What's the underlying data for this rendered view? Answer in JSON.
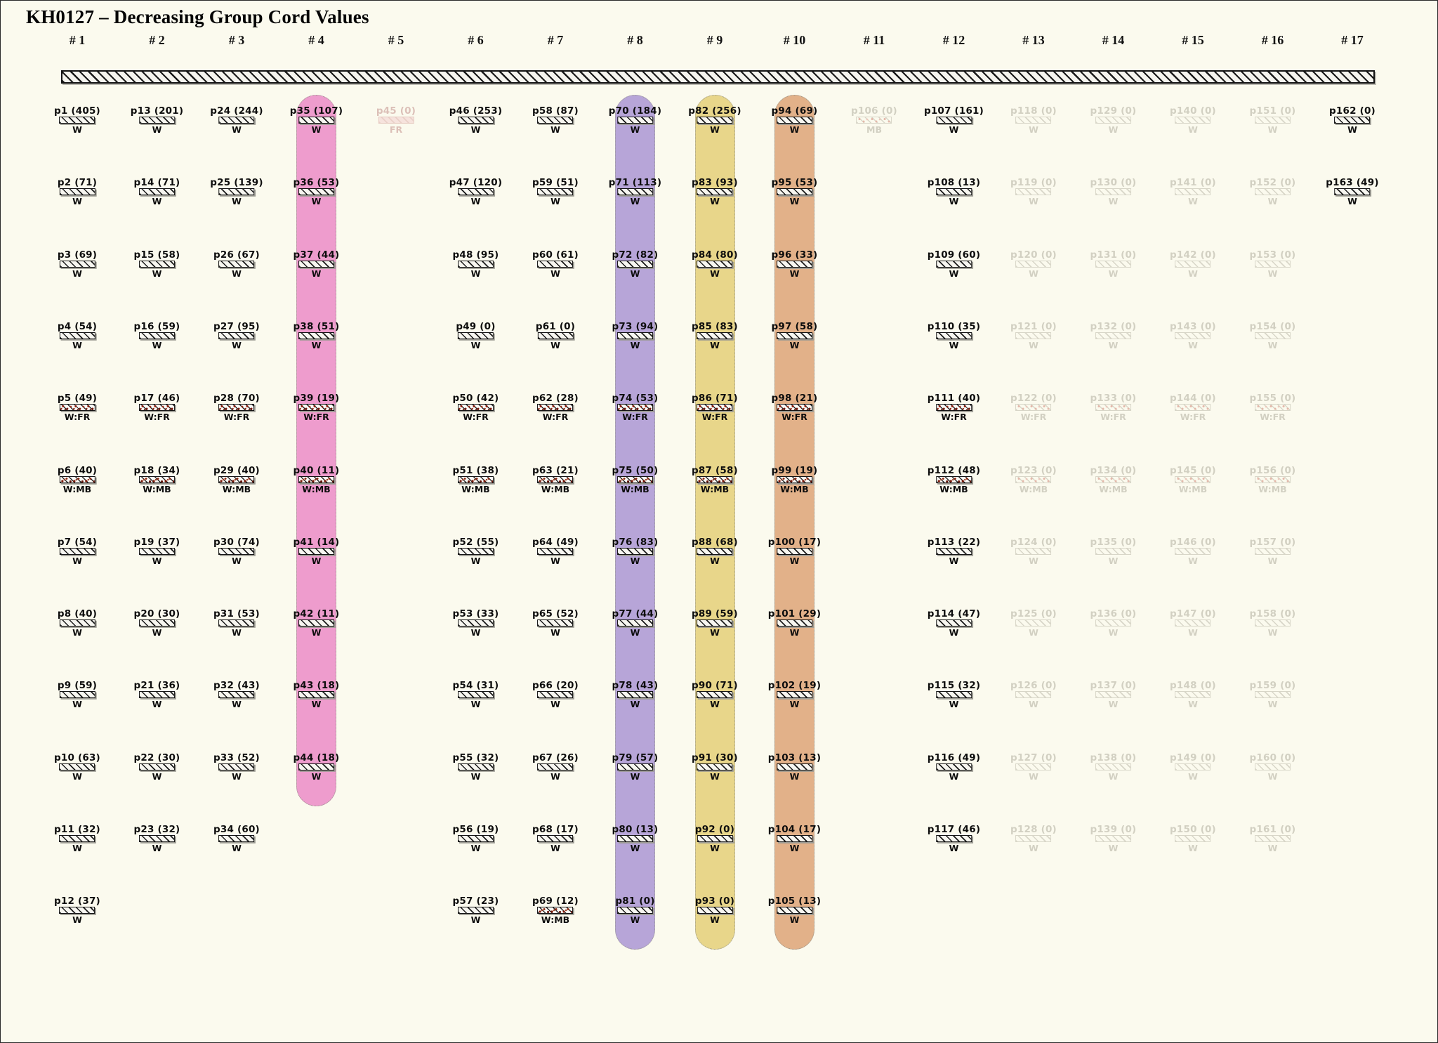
{
  "title": "KH0127 – Decreasing Group Cord Values",
  "colors": {
    "background": "#fbfaee",
    "pill_pink": "#ee9ccd",
    "pill_purple": "#b7a5d8",
    "pill_yellow": "#e8d68a",
    "pill_orange": "#e2b189",
    "bar_ink": "#131313",
    "faded_gray": "#d2d0c2",
    "faded_pink": "#dcc0b8"
  },
  "columns": [
    {
      "header": "# 1",
      "items": [
        {
          "label": "p1 (405)",
          "tag": "W"
        },
        {
          "label": "p2 (71)",
          "tag": "W"
        },
        {
          "label": "p3 (69)",
          "tag": "W"
        },
        {
          "label": "p4 (54)",
          "tag": "W"
        },
        {
          "label": "p5 (49)",
          "tag": "W:FR"
        },
        {
          "label": "p6 (40)",
          "tag": "W:MB"
        },
        {
          "label": "p7 (54)",
          "tag": "W"
        },
        {
          "label": "p8 (40)",
          "tag": "W"
        },
        {
          "label": "p9 (59)",
          "tag": "W"
        },
        {
          "label": "p10 (63)",
          "tag": "W"
        },
        {
          "label": "p11 (32)",
          "tag": "W"
        },
        {
          "label": "p12 (37)",
          "tag": "W"
        }
      ]
    },
    {
      "header": "# 2",
      "items": [
        {
          "label": "p13 (201)",
          "tag": "W"
        },
        {
          "label": "p14 (71)",
          "tag": "W"
        },
        {
          "label": "p15 (58)",
          "tag": "W"
        },
        {
          "label": "p16 (59)",
          "tag": "W"
        },
        {
          "label": "p17 (46)",
          "tag": "W:FR"
        },
        {
          "label": "p18 (34)",
          "tag": "W:MB"
        },
        {
          "label": "p19 (37)",
          "tag": "W"
        },
        {
          "label": "p20 (30)",
          "tag": "W"
        },
        {
          "label": "p21 (36)",
          "tag": "W"
        },
        {
          "label": "p22 (30)",
          "tag": "W"
        },
        {
          "label": "p23 (32)",
          "tag": "W"
        }
      ]
    },
    {
      "header": "# 3",
      "items": [
        {
          "label": "p24 (244)",
          "tag": "W"
        },
        {
          "label": "p25 (139)",
          "tag": "W"
        },
        {
          "label": "p26 (67)",
          "tag": "W"
        },
        {
          "label": "p27 (95)",
          "tag": "W"
        },
        {
          "label": "p28 (70)",
          "tag": "W:FR"
        },
        {
          "label": "p29 (40)",
          "tag": "W:MB"
        },
        {
          "label": "p30 (74)",
          "tag": "W"
        },
        {
          "label": "p31 (53)",
          "tag": "W"
        },
        {
          "label": "p32 (43)",
          "tag": "W"
        },
        {
          "label": "p33 (52)",
          "tag": "W"
        },
        {
          "label": "p34 (60)",
          "tag": "W"
        }
      ]
    },
    {
      "header": "# 4",
      "highlight": "#ee9ccd",
      "items": [
        {
          "label": "p35 (107)",
          "tag": "W"
        },
        {
          "label": "p36 (53)",
          "tag": "W"
        },
        {
          "label": "p37 (44)",
          "tag": "W"
        },
        {
          "label": "p38 (51)",
          "tag": "W"
        },
        {
          "label": "p39 (19)",
          "tag": "W:FR"
        },
        {
          "label": "p40 (11)",
          "tag": "W:MB"
        },
        {
          "label": "p41 (14)",
          "tag": "W"
        },
        {
          "label": "p42 (11)",
          "tag": "W"
        },
        {
          "label": "p43 (18)",
          "tag": "W"
        },
        {
          "label": "p44 (18)",
          "tag": "W"
        }
      ]
    },
    {
      "header": "# 5",
      "fade": "pink",
      "items": [
        {
          "label": "p45 (0)",
          "tag": "FR"
        }
      ]
    },
    {
      "header": "# 6",
      "items": [
        {
          "label": "p46 (253)",
          "tag": "W"
        },
        {
          "label": "p47 (120)",
          "tag": "W"
        },
        {
          "label": "p48 (95)",
          "tag": "W"
        },
        {
          "label": "p49 (0)",
          "tag": "W"
        },
        {
          "label": "p50 (42)",
          "tag": "W:FR"
        },
        {
          "label": "p51 (38)",
          "tag": "W:MB"
        },
        {
          "label": "p52 (55)",
          "tag": "W"
        },
        {
          "label": "p53 (33)",
          "tag": "W"
        },
        {
          "label": "p54 (31)",
          "tag": "W"
        },
        {
          "label": "p55 (32)",
          "tag": "W"
        },
        {
          "label": "p56 (19)",
          "tag": "W"
        },
        {
          "label": "p57 (23)",
          "tag": "W"
        }
      ]
    },
    {
      "header": "# 7",
      "items": [
        {
          "label": "p58 (87)",
          "tag": "W"
        },
        {
          "label": "p59 (51)",
          "tag": "W"
        },
        {
          "label": "p60 (61)",
          "tag": "W"
        },
        {
          "label": "p61 (0)",
          "tag": "W"
        },
        {
          "label": "p62 (28)",
          "tag": "W:FR"
        },
        {
          "label": "p63 (21)",
          "tag": "W:MB"
        },
        {
          "label": "p64 (49)",
          "tag": "W"
        },
        {
          "label": "p65 (52)",
          "tag": "W"
        },
        {
          "label": "p66 (20)",
          "tag": "W"
        },
        {
          "label": "p67 (26)",
          "tag": "W"
        },
        {
          "label": "p68 (17)",
          "tag": "W"
        },
        {
          "label": "p69 (12)",
          "tag": "W:MB"
        }
      ]
    },
    {
      "header": "# 8",
      "highlight": "#b7a5d8",
      "items": [
        {
          "label": "p70 (184)",
          "tag": "W"
        },
        {
          "label": "p71 (113)",
          "tag": "W"
        },
        {
          "label": "p72 (82)",
          "tag": "W"
        },
        {
          "label": "p73 (94)",
          "tag": "W"
        },
        {
          "label": "p74 (53)",
          "tag": "W:FR"
        },
        {
          "label": "p75 (50)",
          "tag": "W:MB"
        },
        {
          "label": "p76 (83)",
          "tag": "W"
        },
        {
          "label": "p77 (44)",
          "tag": "W"
        },
        {
          "label": "p78 (43)",
          "tag": "W"
        },
        {
          "label": "p79 (57)",
          "tag": "W"
        },
        {
          "label": "p80 (13)",
          "tag": "W"
        },
        {
          "label": "p81 (0)",
          "tag": "W"
        }
      ]
    },
    {
      "header": "# 9",
      "highlight": "#e8d68a",
      "items": [
        {
          "label": "p82 (256)",
          "tag": "W"
        },
        {
          "label": "p83 (93)",
          "tag": "W"
        },
        {
          "label": "p84 (80)",
          "tag": "W"
        },
        {
          "label": "p85 (83)",
          "tag": "W"
        },
        {
          "label": "p86 (71)",
          "tag": "W:FR"
        },
        {
          "label": "p87 (58)",
          "tag": "W:MB"
        },
        {
          "label": "p88 (68)",
          "tag": "W"
        },
        {
          "label": "p89 (59)",
          "tag": "W"
        },
        {
          "label": "p90 (71)",
          "tag": "W"
        },
        {
          "label": "p91 (30)",
          "tag": "W"
        },
        {
          "label": "p92 (0)",
          "tag": "W"
        },
        {
          "label": "p93 (0)",
          "tag": "W"
        }
      ]
    },
    {
      "header": "# 10",
      "highlight": "#e2b189",
      "items": [
        {
          "label": "p94 (69)",
          "tag": "W"
        },
        {
          "label": "p95 (53)",
          "tag": "W"
        },
        {
          "label": "p96 (33)",
          "tag": "W"
        },
        {
          "label": "p97 (58)",
          "tag": "W"
        },
        {
          "label": "p98 (21)",
          "tag": "W:FR"
        },
        {
          "label": "p99 (19)",
          "tag": "W:MB"
        },
        {
          "label": "p100 (17)",
          "tag": "W"
        },
        {
          "label": "p101 (29)",
          "tag": "W"
        },
        {
          "label": "p102 (19)",
          "tag": "W"
        },
        {
          "label": "p103 (13)",
          "tag": "W"
        },
        {
          "label": "p104 (17)",
          "tag": "W"
        },
        {
          "label": "p105 (13)",
          "tag": "W"
        }
      ]
    },
    {
      "header": "# 11",
      "fade": "gray",
      "items": [
        {
          "label": "p106 (0)",
          "tag": "MB"
        }
      ]
    },
    {
      "header": "# 12",
      "items": [
        {
          "label": "p107 (161)",
          "tag": "W"
        },
        {
          "label": "p108 (13)",
          "tag": "W"
        },
        {
          "label": "p109 (60)",
          "tag": "W"
        },
        {
          "label": "p110 (35)",
          "tag": "W"
        },
        {
          "label": "p111 (40)",
          "tag": "W:FR"
        },
        {
          "label": "p112 (48)",
          "tag": "W:MB"
        },
        {
          "label": "p113 (22)",
          "tag": "W"
        },
        {
          "label": "p114 (47)",
          "tag": "W"
        },
        {
          "label": "p115 (32)",
          "tag": "W"
        },
        {
          "label": "p116 (49)",
          "tag": "W"
        },
        {
          "label": "p117 (46)",
          "tag": "W"
        }
      ]
    },
    {
      "header": "# 13",
      "fade": "gray",
      "items": [
        {
          "label": "p118 (0)",
          "tag": "W"
        },
        {
          "label": "p119 (0)",
          "tag": "W"
        },
        {
          "label": "p120 (0)",
          "tag": "W"
        },
        {
          "label": "p121 (0)",
          "tag": "W"
        },
        {
          "label": "p122 (0)",
          "tag": "W:FR"
        },
        {
          "label": "p123 (0)",
          "tag": "W:MB"
        },
        {
          "label": "p124 (0)",
          "tag": "W"
        },
        {
          "label": "p125 (0)",
          "tag": "W"
        },
        {
          "label": "p126 (0)",
          "tag": "W"
        },
        {
          "label": "p127 (0)",
          "tag": "W"
        },
        {
          "label": "p128 (0)",
          "tag": "W"
        }
      ]
    },
    {
      "header": "# 14",
      "fade": "gray",
      "items": [
        {
          "label": "p129 (0)",
          "tag": "W"
        },
        {
          "label": "p130 (0)",
          "tag": "W"
        },
        {
          "label": "p131 (0)",
          "tag": "W"
        },
        {
          "label": "p132 (0)",
          "tag": "W"
        },
        {
          "label": "p133 (0)",
          "tag": "W:FR"
        },
        {
          "label": "p134 (0)",
          "tag": "W:MB"
        },
        {
          "label": "p135 (0)",
          "tag": "W"
        },
        {
          "label": "p136 (0)",
          "tag": "W"
        },
        {
          "label": "p137 (0)",
          "tag": "W"
        },
        {
          "label": "p138 (0)",
          "tag": "W"
        },
        {
          "label": "p139 (0)",
          "tag": "W"
        }
      ]
    },
    {
      "header": "# 15",
      "fade": "gray",
      "items": [
        {
          "label": "p140 (0)",
          "tag": "W"
        },
        {
          "label": "p141 (0)",
          "tag": "W"
        },
        {
          "label": "p142 (0)",
          "tag": "W"
        },
        {
          "label": "p143 (0)",
          "tag": "W"
        },
        {
          "label": "p144 (0)",
          "tag": "W:FR"
        },
        {
          "label": "p145 (0)",
          "tag": "W:MB"
        },
        {
          "label": "p146 (0)",
          "tag": "W"
        },
        {
          "label": "p147 (0)",
          "tag": "W"
        },
        {
          "label": "p148 (0)",
          "tag": "W"
        },
        {
          "label": "p149 (0)",
          "tag": "W"
        },
        {
          "label": "p150 (0)",
          "tag": "W"
        }
      ]
    },
    {
      "header": "# 16",
      "fade": "gray",
      "items": [
        {
          "label": "p151 (0)",
          "tag": "W"
        },
        {
          "label": "p152 (0)",
          "tag": "W"
        },
        {
          "label": "p153 (0)",
          "tag": "W"
        },
        {
          "label": "p154 (0)",
          "tag": "W"
        },
        {
          "label": "p155 (0)",
          "tag": "W:FR"
        },
        {
          "label": "p156 (0)",
          "tag": "W:MB"
        },
        {
          "label": "p157 (0)",
          "tag": "W"
        },
        {
          "label": "p158 (0)",
          "tag": "W"
        },
        {
          "label": "p159 (0)",
          "tag": "W"
        },
        {
          "label": "p160 (0)",
          "tag": "W"
        },
        {
          "label": "p161 (0)",
          "tag": "W"
        }
      ]
    },
    {
      "header": "# 17",
      "items": [
        {
          "label": "p162 (0)",
          "tag": "W"
        },
        {
          "label": "p163 (49)",
          "tag": "W"
        }
      ]
    }
  ]
}
